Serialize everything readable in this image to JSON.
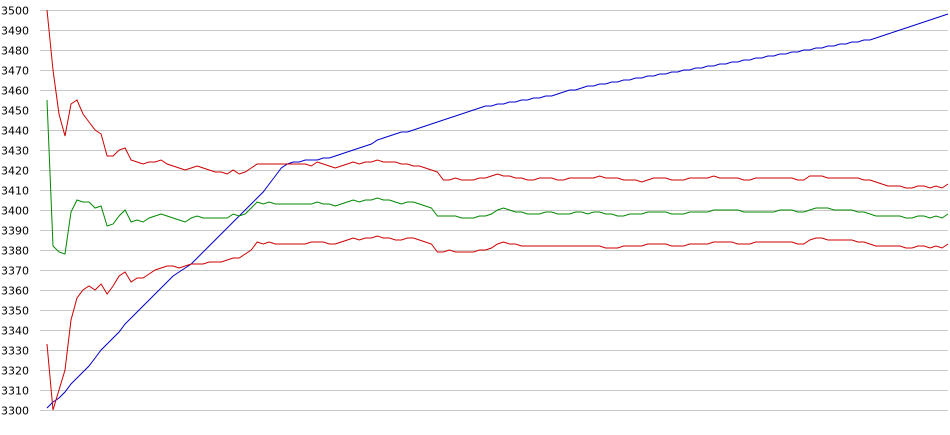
{
  "chart_data": {
    "type": "line",
    "title": "",
    "xlabel": "",
    "ylabel": "",
    "ylim": [
      3300,
      3500
    ],
    "xlim": [
      0,
      150
    ],
    "y_ticks": [
      "3500",
      "3490",
      "3480",
      "3470",
      "3460",
      "3450",
      "3440",
      "3430",
      "3420",
      "3410",
      "3400",
      "3390",
      "3380",
      "3370",
      "3360",
      "3350",
      "3340",
      "3330",
      "3320",
      "3310",
      "3300"
    ],
    "grid": true,
    "legend": "none",
    "series": [
      {
        "color": "#0000cc",
        "values": [
          3301,
          3304,
          3306,
          3309,
          3313,
          3316,
          3319,
          3322,
          3326,
          3330,
          3333,
          3336,
          3339,
          3343,
          3346,
          3349,
          3352,
          3355,
          3358,
          3361,
          3364,
          3367,
          3369,
          3371,
          3373,
          3376,
          3379,
          3382,
          3385,
          3388,
          3391,
          3394,
          3397,
          3400,
          3403,
          3406,
          3409,
          3413,
          3417,
          3421,
          3423,
          3424,
          3424,
          3425,
          3425,
          3425,
          3426,
          3426,
          3427,
          3428,
          3429,
          3430,
          3431,
          3432,
          3433,
          3435,
          3436,
          3437,
          3438,
          3439,
          3439,
          3440,
          3441,
          3442,
          3443,
          3444,
          3445,
          3446,
          3447,
          3448,
          3449,
          3450,
          3451,
          3452,
          3452,
          3453,
          3453,
          3454,
          3454,
          3455,
          3455,
          3456,
          3456,
          3457,
          3457,
          3458,
          3459,
          3460,
          3460,
          3461,
          3462,
          3462,
          3463,
          3463,
          3464,
          3464,
          3465,
          3465,
          3466,
          3466,
          3467,
          3467,
          3468,
          3468,
          3469,
          3469,
          3470,
          3470,
          3471,
          3471,
          3472,
          3472,
          3473,
          3473,
          3474,
          3474,
          3475,
          3475,
          3476,
          3476,
          3477,
          3477,
          3478,
          3478,
          3479,
          3479,
          3480,
          3480,
          3481,
          3481,
          3482,
          3482,
          3483,
          3483,
          3484,
          3484,
          3485,
          3485,
          3486,
          3487,
          3488,
          3489,
          3490,
          3491,
          3492,
          3493,
          3494,
          3495,
          3496,
          3497,
          3498
        ]
      },
      {
        "color": "#cc0000",
        "values": [
          3500,
          3470,
          3448,
          3437,
          3453,
          3455,
          3448,
          3444,
          3440,
          3438,
          3427,
          3427,
          3430,
          3431,
          3425,
          3424,
          3423,
          3424,
          3424,
          3425,
          3423,
          3422,
          3421,
          3420,
          3421,
          3422,
          3421,
          3420,
          3419,
          3419,
          3418,
          3420,
          3418,
          3419,
          3421,
          3423,
          3423,
          3423,
          3423,
          3423,
          3423,
          3423,
          3423,
          3423,
          3422,
          3424,
          3423,
          3422,
          3421,
          3422,
          3423,
          3424,
          3423,
          3424,
          3424,
          3425,
          3424,
          3424,
          3424,
          3423,
          3423,
          3422,
          3422,
          3421,
          3420,
          3419,
          3415,
          3415,
          3416,
          3415,
          3415,
          3415,
          3416,
          3416,
          3417,
          3418,
          3417,
          3417,
          3416,
          3416,
          3415,
          3415,
          3416,
          3416,
          3416,
          3415,
          3415,
          3416,
          3416,
          3416,
          3416,
          3416,
          3417,
          3416,
          3416,
          3416,
          3415,
          3415,
          3415,
          3414,
          3415,
          3416,
          3416,
          3416,
          3415,
          3415,
          3415,
          3416,
          3416,
          3416,
          3416,
          3417,
          3416,
          3416,
          3416,
          3416,
          3415,
          3415,
          3416,
          3416,
          3416,
          3416,
          3416,
          3416,
          3416,
          3415,
          3415,
          3417,
          3417,
          3417,
          3416,
          3416,
          3416,
          3416,
          3416,
          3416,
          3415,
          3415,
          3414,
          3413,
          3412,
          3412,
          3412,
          3411,
          3411,
          3412,
          3412,
          3411,
          3412,
          3411,
          3413
        ]
      },
      {
        "color": "#008800",
        "values": [
          3455,
          3382,
          3379,
          3378,
          3399,
          3405,
          3404,
          3404,
          3401,
          3402,
          3392,
          3393,
          3397,
          3400,
          3394,
          3395,
          3394,
          3396,
          3397,
          3398,
          3397,
          3396,
          3395,
          3394,
          3396,
          3397,
          3396,
          3396,
          3396,
          3396,
          3396,
          3398,
          3397,
          3398,
          3401,
          3404,
          3403,
          3404,
          3403,
          3403,
          3403,
          3403,
          3403,
          3403,
          3403,
          3404,
          3403,
          3403,
          3402,
          3403,
          3404,
          3405,
          3404,
          3405,
          3405,
          3406,
          3405,
          3405,
          3404,
          3403,
          3404,
          3404,
          3403,
          3402,
          3401,
          3397,
          3397,
          3397,
          3397,
          3396,
          3396,
          3396,
          3397,
          3397,
          3398,
          3400,
          3401,
          3400,
          3399,
          3399,
          3398,
          3398,
          3398,
          3399,
          3399,
          3398,
          3398,
          3398,
          3399,
          3399,
          3398,
          3399,
          3399,
          3398,
          3398,
          3397,
          3397,
          3398,
          3398,
          3398,
          3399,
          3399,
          3399,
          3399,
          3398,
          3398,
          3398,
          3399,
          3399,
          3399,
          3399,
          3400,
          3400,
          3400,
          3400,
          3400,
          3399,
          3399,
          3399,
          3399,
          3399,
          3399,
          3400,
          3400,
          3400,
          3399,
          3399,
          3400,
          3401,
          3401,
          3401,
          3400,
          3400,
          3400,
          3400,
          3399,
          3399,
          3398,
          3397,
          3397,
          3397,
          3397,
          3397,
          3396,
          3396,
          3397,
          3397,
          3396,
          3397,
          3396,
          3398
        ]
      },
      {
        "color": "#cc0000",
        "values": [
          3333,
          3300,
          3310,
          3320,
          3345,
          3356,
          3360,
          3362,
          3360,
          3363,
          3358,
          3362,
          3367,
          3369,
          3364,
          3366,
          3366,
          3368,
          3370,
          3371,
          3372,
          3372,
          3371,
          3372,
          3373,
          3373,
          3373,
          3374,
          3374,
          3374,
          3375,
          3376,
          3376,
          3378,
          3380,
          3384,
          3383,
          3384,
          3383,
          3383,
          3383,
          3383,
          3383,
          3383,
          3384,
          3384,
          3384,
          3383,
          3383,
          3384,
          3385,
          3386,
          3385,
          3386,
          3386,
          3387,
          3386,
          3386,
          3385,
          3385,
          3386,
          3386,
          3385,
          3384,
          3383,
          3379,
          3379,
          3380,
          3379,
          3379,
          3379,
          3379,
          3380,
          3380,
          3381,
          3383,
          3384,
          3383,
          3383,
          3382,
          3382,
          3382,
          3382,
          3382,
          3382,
          3382,
          3382,
          3382,
          3382,
          3382,
          3382,
          3382,
          3382,
          3381,
          3381,
          3381,
          3382,
          3382,
          3382,
          3382,
          3383,
          3383,
          3383,
          3383,
          3382,
          3382,
          3382,
          3383,
          3383,
          3383,
          3383,
          3384,
          3384,
          3384,
          3384,
          3383,
          3383,
          3383,
          3384,
          3384,
          3384,
          3384,
          3384,
          3384,
          3384,
          3383,
          3383,
          3385,
          3386,
          3386,
          3385,
          3385,
          3385,
          3385,
          3385,
          3384,
          3384,
          3383,
          3382,
          3382,
          3382,
          3382,
          3382,
          3381,
          3381,
          3382,
          3382,
          3381,
          3382,
          3381,
          3383
        ]
      }
    ]
  }
}
